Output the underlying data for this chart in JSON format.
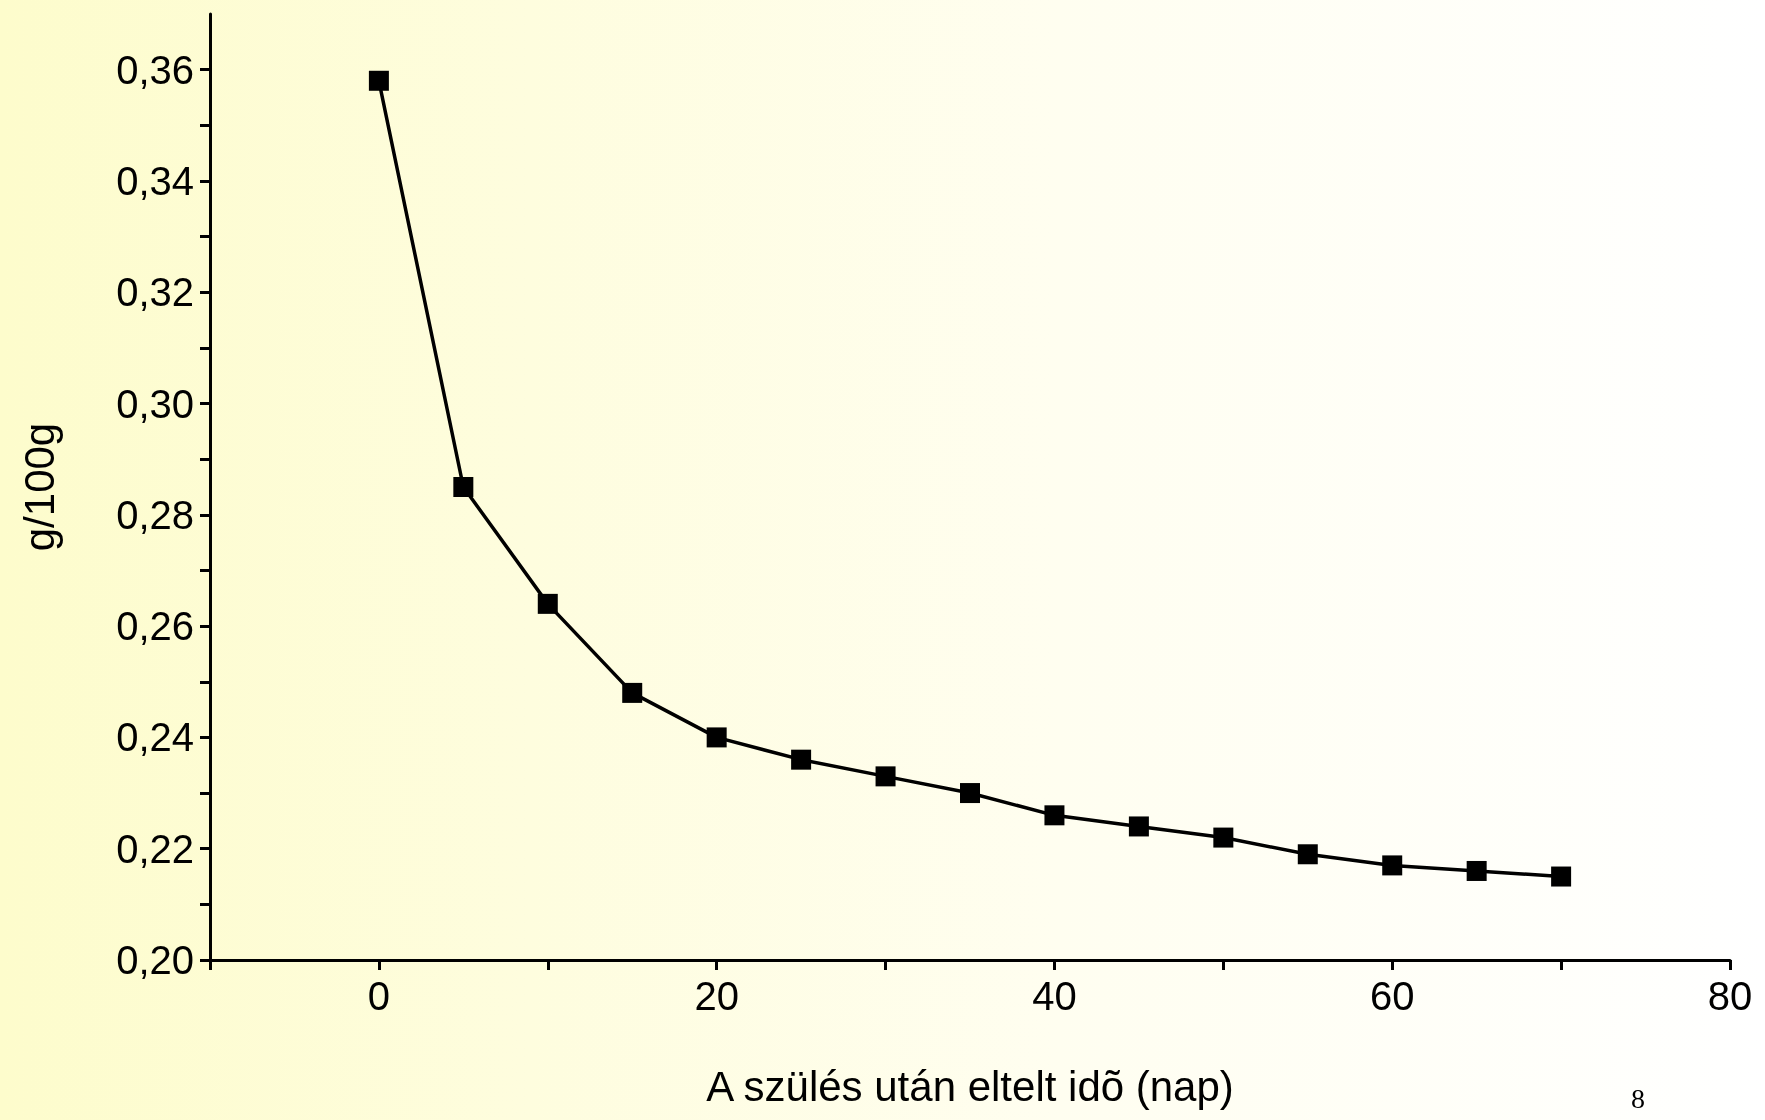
{
  "chart_data": {
    "type": "line",
    "xlabel": "A szülés után eltelt idõ (nap)",
    "ylabel": "g/100g",
    "annotations": [
      "8"
    ],
    "x": [
      0,
      5,
      10,
      15,
      20,
      25,
      30,
      35,
      40,
      45,
      50,
      55,
      60,
      65,
      70
    ],
    "series": [
      {
        "color": "#000000",
        "values": [
          0.358,
          0.285,
          0.264,
          0.248,
          0.24,
          0.236,
          0.233,
          0.23,
          0.226,
          0.224,
          0.222,
          0.219,
          0.217,
          0.216,
          0.215
        ]
      }
    ],
    "xlim": [
      -10,
      80
    ],
    "xticks": [
      {
        "value": -10,
        "label": null
      },
      0,
      {
        "value": 10,
        "label": null
      },
      20,
      {
        "value": 30,
        "label": null
      },
      40,
      {
        "value": 50,
        "label": null
      },
      60,
      {
        "value": 70,
        "label": null
      },
      80
    ],
    "ylim": [
      0.2,
      0.37
    ],
    "yticks": [
      {
        "value": 0.2,
        "label": "0,20"
      },
      {
        "value": 0.21,
        "label": null
      },
      {
        "value": 0.22,
        "label": "0,22"
      },
      {
        "value": 0.23,
        "label": null
      },
      {
        "value": 0.24,
        "label": "0,24"
      },
      {
        "value": 0.25,
        "label": null
      },
      {
        "value": 0.26,
        "label": "0,26"
      },
      {
        "value": 0.27,
        "label": null
      },
      {
        "value": 0.28,
        "label": "0,28"
      },
      {
        "value": 0.29,
        "label": null
      },
      {
        "value": 0.3,
        "label": "0,30"
      },
      {
        "value": 0.31,
        "label": null
      },
      {
        "value": 0.32,
        "label": "0,32"
      },
      {
        "value": 0.33,
        "label": null
      },
      {
        "value": 0.34,
        "label": "0,34"
      },
      {
        "value": 0.35,
        "label": null
      },
      {
        "value": 0.36,
        "label": "0,36"
      }
    ],
    "grid": false,
    "marker": "square",
    "line_style": "solid"
  }
}
